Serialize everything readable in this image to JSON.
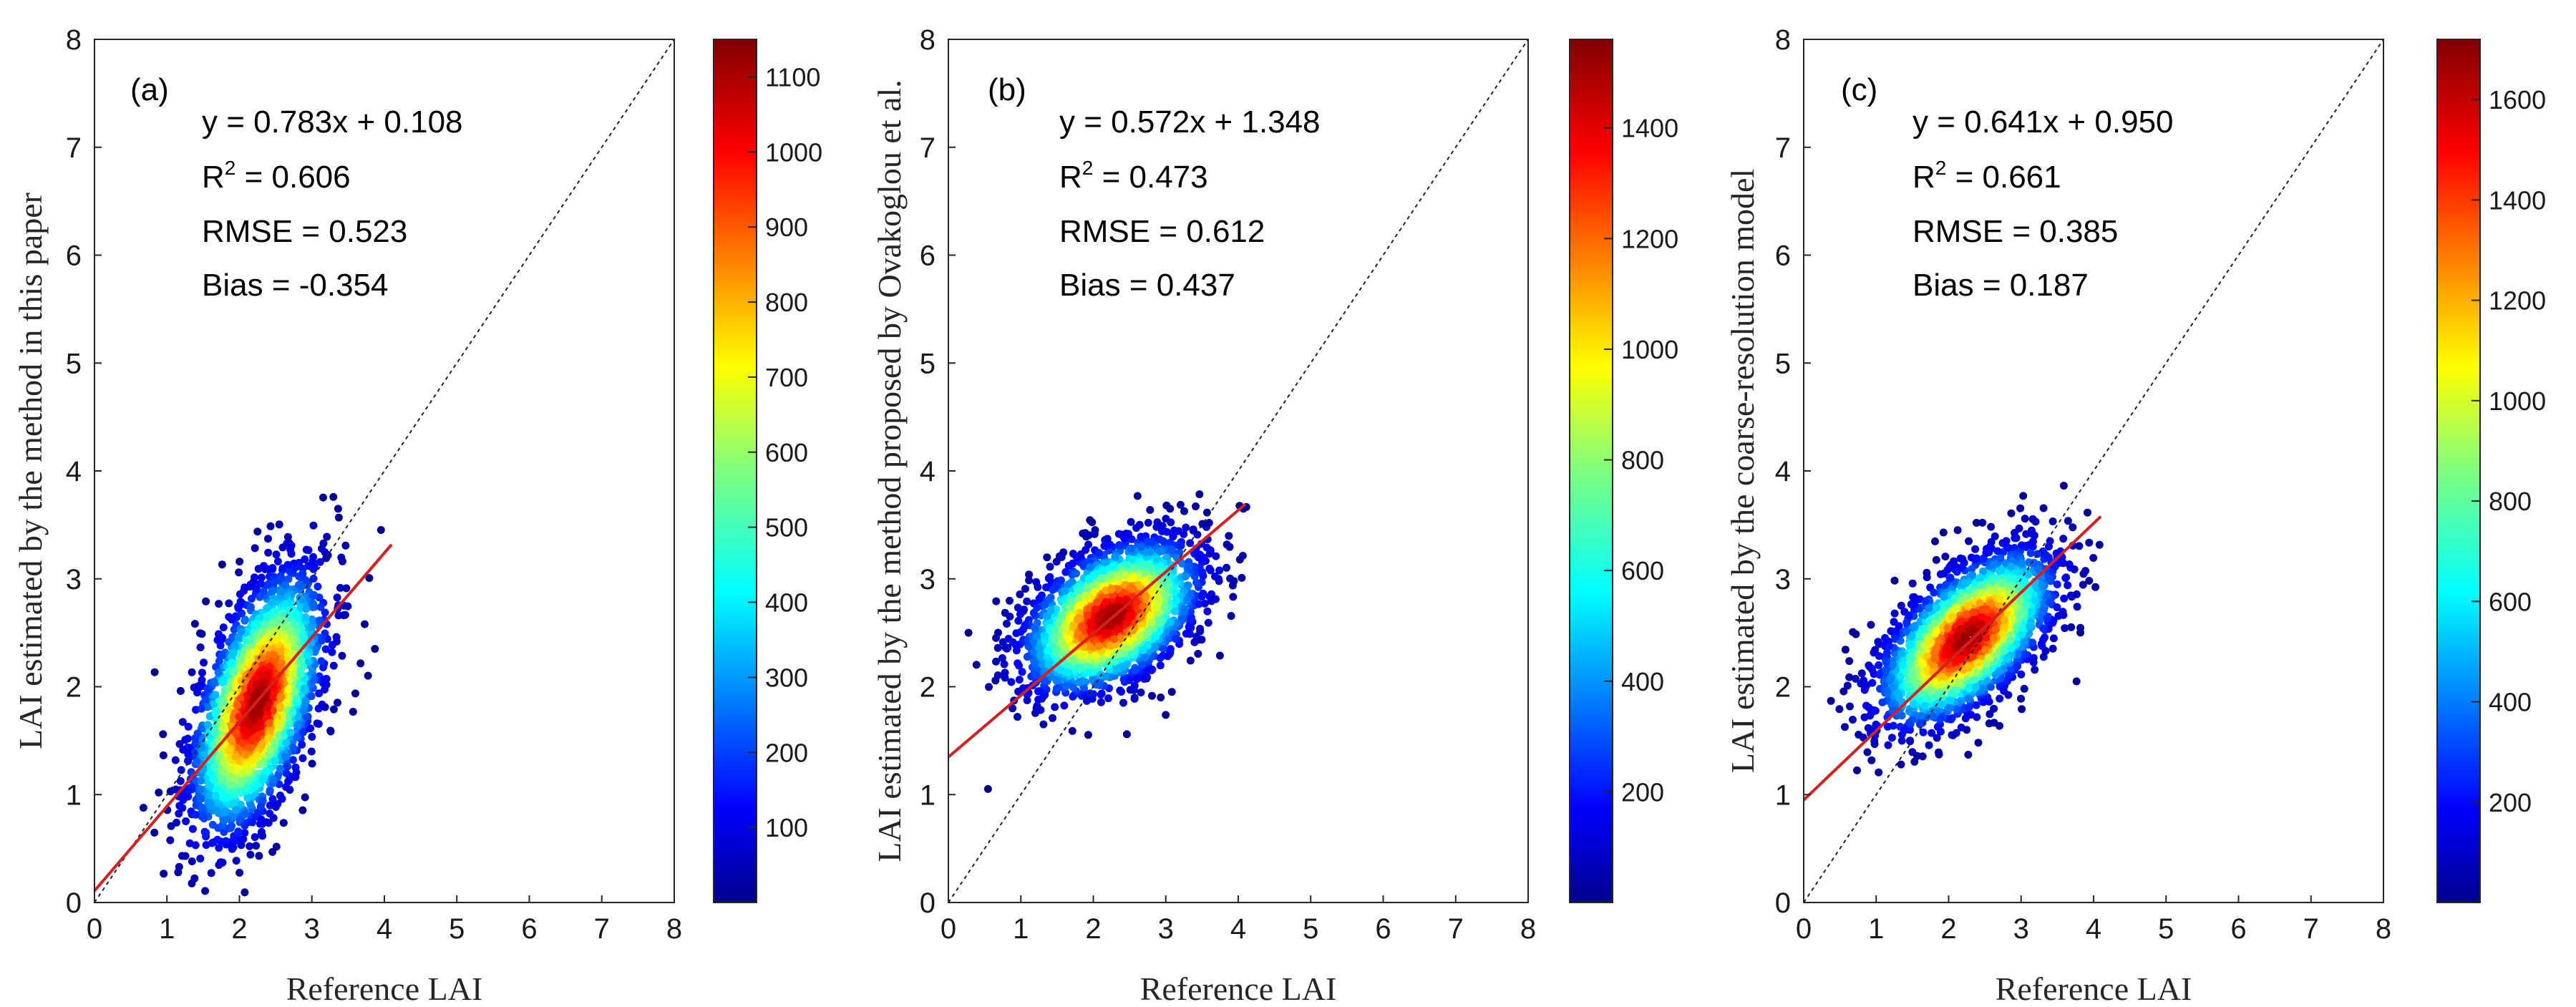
{
  "chart_data": [
    {
      "type": "scatter",
      "panel_label": "(a)",
      "xlabel": "Reference LAI",
      "ylabel": "LAI estimated by the method in this paper",
      "xlim": [
        0,
        8
      ],
      "ylim": [
        0,
        8
      ],
      "x_ticks": [
        "0",
        "1",
        "2",
        "3",
        "4",
        "5",
        "6",
        "7",
        "8"
      ],
      "y_ticks": [
        "0",
        "1",
        "2",
        "3",
        "4",
        "5",
        "6",
        "7",
        "8"
      ],
      "regression": {
        "slope": 0.783,
        "intercept": 0.108,
        "x_range": [
          0,
          4.1
        ]
      },
      "stats": {
        "equation": "y = 0.783x + 0.108",
        "r2_prefix": "R",
        "r2_sup": "2",
        "r2_value": " = 0.606",
        "rmse": "RMSE = 0.523",
        "bias": "Bias = -0.354"
      },
      "density": {
        "center": [
          2.25,
          1.85
        ],
        "spread": [
          0.45,
          0.6
        ],
        "corr": 0.55
      },
      "colorbar": {
        "min": 0,
        "max": 1150,
        "ticks": [
          "100",
          "200",
          "300",
          "400",
          "500",
          "600",
          "700",
          "800",
          "900",
          "1000",
          "1100"
        ],
        "tick_values": [
          100,
          200,
          300,
          400,
          500,
          600,
          700,
          800,
          900,
          1000,
          1100
        ]
      }
    },
    {
      "type": "scatter",
      "panel_label": "(b)",
      "xlabel": "Reference LAI",
      "ylabel": "LAI estimated by the method proposed by Ovakoglou et al.",
      "xlim": [
        0,
        8
      ],
      "ylim": [
        0,
        8
      ],
      "x_ticks": [
        "0",
        "1",
        "2",
        "3",
        "4",
        "5",
        "6",
        "7",
        "8"
      ],
      "y_ticks": [
        "0",
        "1",
        "2",
        "3",
        "4",
        "5",
        "6",
        "7",
        "8"
      ],
      "regression": {
        "slope": 0.572,
        "intercept": 1.348,
        "x_range": [
          0,
          4.1
        ]
      },
      "stats": {
        "equation": "y = 0.572x + 1.348",
        "r2_prefix": "R",
        "r2_sup": "2",
        "r2_value": " = 0.473",
        "rmse": "RMSE = 0.612",
        "bias": "Bias = 0.437"
      },
      "density": {
        "center": [
          2.25,
          2.65
        ],
        "spread": [
          0.6,
          0.35
        ],
        "corr": 0.45
      },
      "colorbar": {
        "min": 0,
        "max": 1560,
        "ticks": [
          "200",
          "400",
          "600",
          "800",
          "1000",
          "1200",
          "1400"
        ],
        "tick_values": [
          200,
          400,
          600,
          800,
          1000,
          1200,
          1400
        ]
      }
    },
    {
      "type": "scatter",
      "panel_label": "(c)",
      "xlabel": "Reference LAI",
      "ylabel": "LAI estimated by the coarse-resolution model",
      "xlim": [
        0,
        8
      ],
      "ylim": [
        0,
        8
      ],
      "x_ticks": [
        "0",
        "1",
        "2",
        "3",
        "4",
        "5",
        "6",
        "7",
        "8"
      ],
      "y_ticks": [
        "0",
        "1",
        "2",
        "3",
        "4",
        "5",
        "6",
        "7",
        "8"
      ],
      "regression": {
        "slope": 0.641,
        "intercept": 0.95,
        "x_range": [
          0,
          4.1
        ]
      },
      "stats": {
        "equation": "y = 0.641x + 0.950",
        "r2_prefix": "R",
        "r2_sup": "2",
        "r2_value": " = 0.661",
        "rmse": "RMSE = 0.385",
        "bias": "Bias = 0.187"
      },
      "density": {
        "center": [
          2.25,
          2.45
        ],
        "spread": [
          0.6,
          0.4
        ],
        "corr": 0.6
      },
      "colorbar": {
        "min": 0,
        "max": 1720,
        "ticks": [
          "200",
          "400",
          "600",
          "800",
          "1000",
          "1200",
          "1400",
          "1600"
        ],
        "tick_values": [
          200,
          400,
          600,
          800,
          1000,
          1200,
          1400,
          1600
        ]
      }
    }
  ]
}
